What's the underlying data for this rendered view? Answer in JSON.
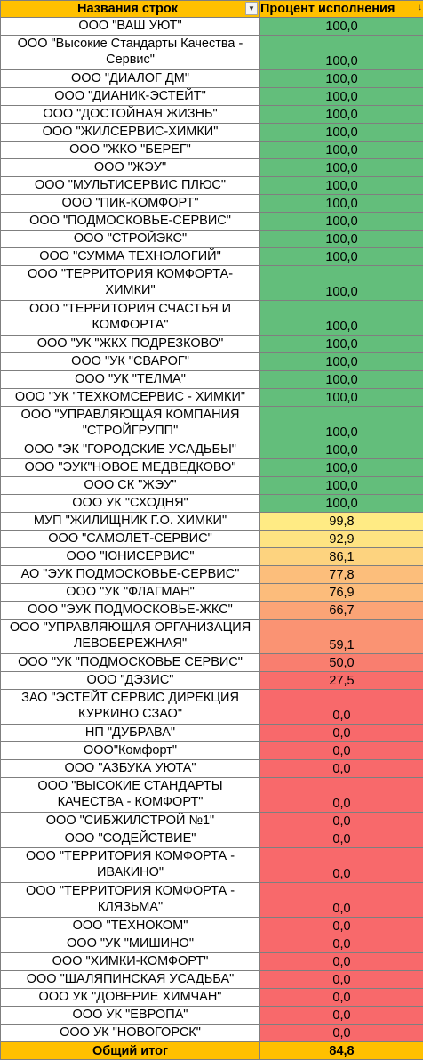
{
  "header": {
    "name_label": "Названия строк",
    "value_label": "Процент исполнения",
    "filter_icon": "dropdown-arrow-icon",
    "sort_icon": "sort-descending-icon"
  },
  "rows": [
    {
      "name": "ООО \"ВАШ УЮТ\"",
      "value": "100,0",
      "lines": 1,
      "color": "#63be7b"
    },
    {
      "name": "ООО \"Высокие Стандарты Качества - Сервис\"",
      "value": "100,0",
      "lines": 2,
      "color": "#63be7b"
    },
    {
      "name": "ООО \"ДИАЛОГ ДМ\"",
      "value": "100,0",
      "lines": 1,
      "color": "#63be7b"
    },
    {
      "name": "ООО \"ДИАНИК-ЭСТЕЙТ\"",
      "value": "100,0",
      "lines": 1,
      "color": "#63be7b"
    },
    {
      "name": "ООО \"ДОСТОЙНАЯ ЖИЗНЬ\"",
      "value": "100,0",
      "lines": 1,
      "color": "#63be7b"
    },
    {
      "name": "ООО \"ЖИЛСЕРВИС-ХИМКИ\"",
      "value": "100,0",
      "lines": 1,
      "color": "#63be7b"
    },
    {
      "name": "ООО \"ЖКО \"БЕРЕГ\"",
      "value": "100,0",
      "lines": 1,
      "color": "#63be7b"
    },
    {
      "name": "ООО \"ЖЭУ\"",
      "value": "100,0",
      "lines": 1,
      "color": "#63be7b"
    },
    {
      "name": "ООО \"МУЛЬТИСЕРВИС ПЛЮС\"",
      "value": "100,0",
      "lines": 1,
      "color": "#63be7b"
    },
    {
      "name": "ООО \"ПИК-КОМФОРТ\"",
      "value": "100,0",
      "lines": 1,
      "color": "#63be7b"
    },
    {
      "name": "ООО \"ПОДМОСКОВЬЕ-СЕРВИС\"",
      "value": "100,0",
      "lines": 1,
      "color": "#63be7b"
    },
    {
      "name": "ООО \"СТРОЙЭКС\"",
      "value": "100,0",
      "lines": 1,
      "color": "#63be7b"
    },
    {
      "name": "ООО \"СУММА ТЕХНОЛОГИЙ\"",
      "value": "100,0",
      "lines": 1,
      "color": "#63be7b"
    },
    {
      "name": "ООО \"ТЕРРИТОРИЯ КОМФОРТА-ХИМКИ\"",
      "value": "100,0",
      "lines": 2,
      "color": "#63be7b"
    },
    {
      "name": "ООО \"ТЕРРИТОРИЯ СЧАСТЬЯ И КОМФОРТА\"",
      "value": "100,0",
      "lines": 2,
      "color": "#63be7b"
    },
    {
      "name": "ООО \"УК \"ЖКХ ПОДРЕЗКОВО\"",
      "value": "100,0",
      "lines": 1,
      "color": "#63be7b"
    },
    {
      "name": "ООО \"УК \"СВАРОГ\"",
      "value": "100,0",
      "lines": 1,
      "color": "#63be7b"
    },
    {
      "name": "ООО \"УК \"ТЕЛМА\"",
      "value": "100,0",
      "lines": 1,
      "color": "#63be7b"
    },
    {
      "name": "ООО \"УК \"ТЕХКОМСЕРВИС - ХИМКИ\"",
      "value": "100,0",
      "lines": 1,
      "color": "#63be7b"
    },
    {
      "name": "ООО \"УПРАВЛЯЮЩАЯ КОМПАНИЯ \"СТРОЙГРУПП\"",
      "value": "100,0",
      "lines": 2,
      "color": "#63be7b"
    },
    {
      "name": "ООО \"ЭК \"ГОРОДСКИЕ УСАДЬБЫ\"",
      "value": "100,0",
      "lines": 1,
      "color": "#63be7b"
    },
    {
      "name": "ООО \"ЭУК\"НОВОЕ МЕДВЕДКОВО\"",
      "value": "100,0",
      "lines": 1,
      "color": "#63be7b"
    },
    {
      "name": "ООО СК \"ЖЭУ\"",
      "value": "100,0",
      "lines": 1,
      "color": "#63be7b"
    },
    {
      "name": "ООО УК \"СХОДНЯ\"",
      "value": "100,0",
      "lines": 1,
      "color": "#63be7b"
    },
    {
      "name": "МУП \"ЖИЛИЩНИК Г.О. ХИМКИ\"",
      "value": "99,8",
      "lines": 1,
      "color": "#ffeb84"
    },
    {
      "name": "ООО \"САМОЛЕТ-СЕРВИС\"",
      "value": "92,9",
      "lines": 1,
      "color": "#fee382"
    },
    {
      "name": "ООО \"ЮНИСЕРВИС\"",
      "value": "86,1",
      "lines": 1,
      "color": "#fdd37f"
    },
    {
      "name": "АО \"ЭУК ПОДМОСКОВЬЕ-СЕРВИС\"",
      "value": "77,8",
      "lines": 1,
      "color": "#fcbe7b"
    },
    {
      "name": "ООО \"УК \"ФЛАГМАН\"",
      "value": "76,9",
      "lines": 1,
      "color": "#fcbc7b"
    },
    {
      "name": "ООО \"ЭУК ПОДМОСКОВЬЕ-ЖКС\"",
      "value": "66,7",
      "lines": 1,
      "color": "#fba476"
    },
    {
      "name": "ООО \"УПРАВЛЯЮЩАЯ ОРГАНИЗАЦИЯ ЛЕВОБЕРЕЖНАЯ\"",
      "value": "59,1",
      "lines": 2,
      "color": "#fa9373"
    },
    {
      "name": "ООО \"УК \"ПОДМОСКОВЬЕ СЕРВИС\"",
      "value": "50,0",
      "lines": 1,
      "color": "#f97e6f"
    },
    {
      "name": "ООО \"ДЭЗИС\"",
      "value": "27,5",
      "lines": 1,
      "color": "#f86d6b"
    },
    {
      "name": "ЗАО \"ЭСТЕЙТ СЕРВИС ДИРЕКЦИЯ КУРКИНО СЗАО\"",
      "value": "0,0",
      "lines": 2,
      "color": "#f8696b"
    },
    {
      "name": "НП \"ДУБРАВА\"",
      "value": "0,0",
      "lines": 1,
      "color": "#f8696b"
    },
    {
      "name": "ООО\"Комфорт\"",
      "value": "0,0",
      "lines": 1,
      "color": "#f8696b"
    },
    {
      "name": "ООО \"АЗБУКА УЮТА\"",
      "value": "0,0",
      "lines": 1,
      "color": "#f8696b"
    },
    {
      "name": "ООО \"ВЫСОКИЕ СТАНДАРТЫ КАЧЕСТВА - КОМФОРТ\"",
      "value": "0,0",
      "lines": 2,
      "color": "#f8696b"
    },
    {
      "name": "ООО \"СИБЖИЛСТРОЙ №1\"",
      "value": "0,0",
      "lines": 1,
      "color": "#f8696b"
    },
    {
      "name": "ООО \"СОДЕЙСТВИЕ\"",
      "value": "0,0",
      "lines": 1,
      "color": "#f8696b"
    },
    {
      "name": "ООО \"ТЕРРИТОРИЯ КОМФОРТА - ИВАКИНО\"",
      "value": "0,0",
      "lines": 2,
      "color": "#f8696b"
    },
    {
      "name": "ООО \"ТЕРРИТОРИЯ КОМФОРТА - КЛЯЗЬМА\"",
      "value": "0,0",
      "lines": 2,
      "color": "#f8696b"
    },
    {
      "name": "ООО \"ТЕХНОКОМ\"",
      "value": "0,0",
      "lines": 1,
      "color": "#f8696b"
    },
    {
      "name": "ООО \"УК \"МИШИНО\"",
      "value": "0,0",
      "lines": 1,
      "color": "#f8696b"
    },
    {
      "name": "ООО \"ХИМКИ-КОМФОРТ\"",
      "value": "0,0",
      "lines": 1,
      "color": "#f8696b"
    },
    {
      "name": "ООО \"ШАЛЯПИНСКАЯ УСАДЬБА\"",
      "value": "0,0",
      "lines": 1,
      "color": "#f8696b"
    },
    {
      "name": "ООО УК \"ДОВЕРИЕ ХИМЧАН\"",
      "value": "0,0",
      "lines": 1,
      "color": "#f8696b"
    },
    {
      "name": "ООО УК \"ЕВРОПА\"",
      "value": "0,0",
      "lines": 1,
      "color": "#f8696b"
    },
    {
      "name": "ООО УК \"НОВОГОРСК\"",
      "value": "0,0",
      "lines": 1,
      "color": "#f8696b"
    }
  ],
  "total": {
    "label": "Общий итог",
    "value": "84,8"
  }
}
